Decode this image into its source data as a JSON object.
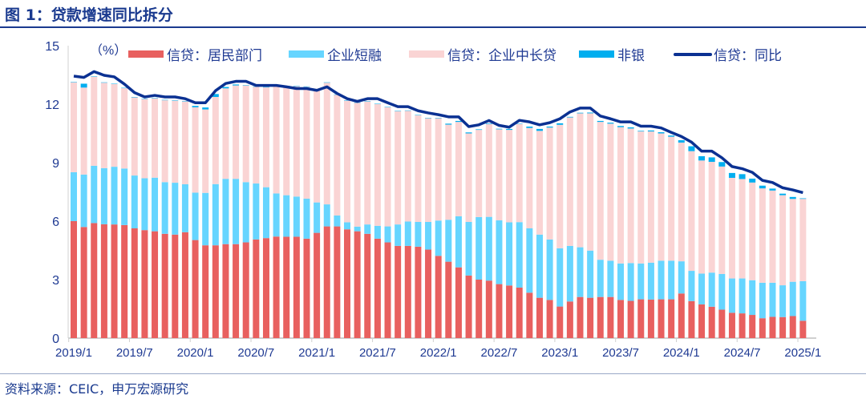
{
  "title": "图 1：贷款增速同比拆分",
  "source": "资料来源：CEIC，申万宏源研究",
  "chart_data": {
    "type": "bar",
    "stacked": true,
    "unit_label": "（%）",
    "ylim": [
      0,
      15
    ],
    "yticks": [
      0,
      3,
      6,
      9,
      12,
      15
    ],
    "grid": false,
    "legend_placement": "top",
    "x_tick_labels": [
      "2019/1",
      "2019/7",
      "2020/1",
      "2020/7",
      "2021/1",
      "2021/7",
      "2022/1",
      "2022/7",
      "2023/1",
      "2023/7",
      "2024/1",
      "2024/7",
      "2025/1"
    ],
    "categories": [
      "2019/1",
      "2019/2",
      "2019/3",
      "2019/4",
      "2019/5",
      "2019/6",
      "2019/7",
      "2019/8",
      "2019/9",
      "2019/10",
      "2019/11",
      "2019/12",
      "2020/1",
      "2020/2",
      "2020/3",
      "2020/4",
      "2020/5",
      "2020/6",
      "2020/7",
      "2020/8",
      "2020/9",
      "2020/10",
      "2020/11",
      "2020/12",
      "2021/1",
      "2021/2",
      "2021/3",
      "2021/4",
      "2021/5",
      "2021/6",
      "2021/7",
      "2021/8",
      "2021/9",
      "2021/10",
      "2021/11",
      "2021/12",
      "2022/1",
      "2022/2",
      "2022/3",
      "2022/4",
      "2022/5",
      "2022/6",
      "2022/7",
      "2022/8",
      "2022/9",
      "2022/10",
      "2022/11",
      "2022/12",
      "2023/1",
      "2023/2",
      "2023/3",
      "2023/4",
      "2023/5",
      "2023/6",
      "2023/7",
      "2023/8",
      "2023/9",
      "2023/10",
      "2023/11",
      "2023/12",
      "2024/1",
      "2024/2",
      "2024/3",
      "2024/4",
      "2024/5",
      "2024/6",
      "2024/7",
      "2024/8",
      "2024/9",
      "2024/10",
      "2024/11",
      "2024/12",
      "2025/1"
    ],
    "series": [
      {
        "name": "信贷：居民部门",
        "kind": "bar",
        "color": "#e8605f",
        "values": [
          6.0,
          5.7,
          5.9,
          5.84,
          5.83,
          5.8,
          5.63,
          5.54,
          5.48,
          5.35,
          5.31,
          5.43,
          5.03,
          4.76,
          4.76,
          4.82,
          4.82,
          4.91,
          5.06,
          5.13,
          5.21,
          5.2,
          5.2,
          5.1,
          5.4,
          5.73,
          5.73,
          5.58,
          5.48,
          5.35,
          5.1,
          4.91,
          4.73,
          4.73,
          4.69,
          4.54,
          4.22,
          3.92,
          3.63,
          3.21,
          3.0,
          2.95,
          2.77,
          2.7,
          2.59,
          2.33,
          2.07,
          1.96,
          1.62,
          1.88,
          2.11,
          2.07,
          2.11,
          2.11,
          1.96,
          1.91,
          1.99,
          1.98,
          1.99,
          1.99,
          2.29,
          1.9,
          1.73,
          1.61,
          1.46,
          1.3,
          1.27,
          1.19,
          1.02,
          1.09,
          1.08,
          1.13,
          0.89
        ]
      },
      {
        "name": "企业短融",
        "kind": "bar",
        "color": "#66d5ff",
        "values": [
          2.51,
          2.69,
          2.94,
          2.88,
          2.96,
          2.9,
          2.71,
          2.66,
          2.75,
          2.65,
          2.66,
          2.46,
          2.43,
          2.69,
          3.14,
          3.35,
          3.35,
          3.09,
          2.87,
          2.61,
          2.21,
          2.13,
          2.06,
          2.05,
          1.56,
          1.13,
          0.56,
          0.36,
          0.24,
          0.48,
          0.66,
          0.82,
          1.1,
          1.25,
          1.27,
          1.42,
          1.81,
          2.15,
          2.62,
          2.75,
          3.21,
          3.27,
          3.27,
          3.24,
          3.36,
          3.3,
          3.24,
          3.1,
          2.99,
          2.85,
          2.55,
          2.42,
          1.91,
          1.86,
          1.87,
          1.94,
          1.84,
          1.89,
          1.98,
          1.98,
          1.65,
          1.55,
          1.58,
          1.75,
          1.83,
          1.76,
          1.79,
          1.78,
          1.82,
          1.75,
          1.63,
          1.76,
          2.03
        ]
      },
      {
        "name": "信贷：企业中长贷",
        "kind": "bar",
        "color": "#fad4d4",
        "values": [
          4.61,
          4.46,
          4.57,
          4.38,
          4.24,
          4.12,
          4.01,
          4.06,
          4.07,
          4.2,
          4.21,
          4.25,
          4.38,
          4.28,
          4.47,
          4.64,
          4.79,
          4.96,
          4.96,
          5.12,
          5.5,
          5.59,
          5.66,
          5.74,
          5.79,
          6.24,
          6.19,
          6.24,
          6.35,
          6.31,
          6.24,
          6.11,
          5.81,
          5.68,
          5.47,
          5.32,
          5.25,
          4.88,
          4.84,
          4.54,
          4.47,
          4.76,
          4.67,
          4.74,
          5.03,
          5.15,
          5.32,
          5.74,
          6.33,
          6.59,
          6.87,
          7.04,
          7.07,
          7.03,
          6.99,
          6.9,
          6.77,
          6.73,
          6.53,
          6.36,
          6.09,
          6.14,
          5.8,
          5.68,
          5.51,
          5.16,
          5.1,
          5.01,
          4.84,
          4.73,
          4.62,
          4.25,
          4.22
        ]
      },
      {
        "name": "非银",
        "kind": "bar",
        "color": "#00aeef",
        "values": [
          0.02,
          0.2,
          0.02,
          0.02,
          0.02,
          0.02,
          0.02,
          0.02,
          0.02,
          0.02,
          0.02,
          0.02,
          0.07,
          0.1,
          0.15,
          0.07,
          0.05,
          0.02,
          0.02,
          0.02,
          0.02,
          0.02,
          0.02,
          0.02,
          0.02,
          0.02,
          0.02,
          0.02,
          0.02,
          0.02,
          0.02,
          0.02,
          0.02,
          0.02,
          0.02,
          0.02,
          0.02,
          0.05,
          0.05,
          0.05,
          0.03,
          0.03,
          0.03,
          0.05,
          0.02,
          0.07,
          0.1,
          0.05,
          0.08,
          0.03,
          0.03,
          0.04,
          0.05,
          0.05,
          0.06,
          0.06,
          0.03,
          0.05,
          0.06,
          0.06,
          0.12,
          0.25,
          0.22,
          0.23,
          0.23,
          0.25,
          0.25,
          0.2,
          0.14,
          0.1,
          0.08,
          0.1,
          0.03
        ]
      },
      {
        "name": "信贷：同比",
        "kind": "line",
        "color": "#0b3192",
        "values": [
          13.44,
          13.37,
          13.67,
          13.48,
          13.4,
          13.03,
          12.59,
          12.37,
          12.45,
          12.37,
          12.37,
          12.28,
          12.07,
          12.07,
          12.69,
          13.06,
          13.17,
          13.17,
          12.96,
          12.96,
          12.96,
          12.89,
          12.8,
          12.8,
          12.71,
          12.89,
          12.55,
          12.28,
          12.14,
          12.28,
          12.28,
          12.07,
          11.87,
          11.87,
          11.66,
          11.55,
          11.46,
          11.35,
          11.35,
          10.85,
          10.94,
          11.16,
          10.91,
          10.82,
          11.17,
          11.09,
          10.94,
          11.05,
          11.25,
          11.6,
          11.8,
          11.8,
          11.39,
          11.25,
          11.09,
          11.09,
          10.87,
          10.87,
          10.78,
          10.55,
          10.34,
          10.05,
          9.59,
          9.59,
          9.25,
          8.8,
          8.69,
          8.5,
          8.09,
          7.98,
          7.71,
          7.6,
          7.46
        ]
      }
    ]
  }
}
